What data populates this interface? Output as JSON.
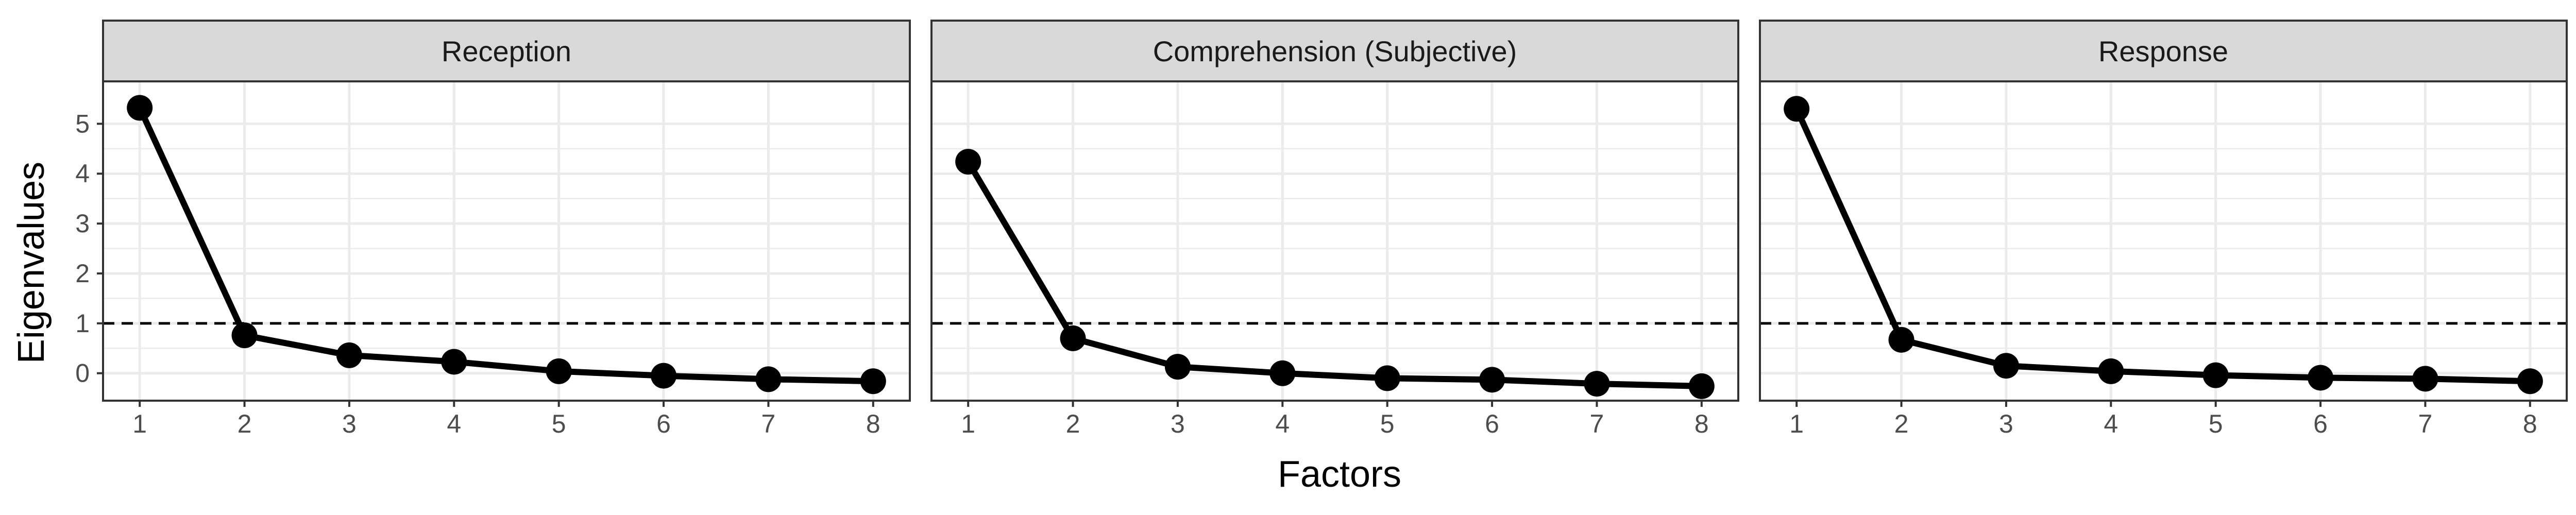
{
  "chart_data": {
    "type": "line",
    "xlabel": "Factors",
    "ylabel": "Eigenvalues",
    "x": [
      1,
      2,
      3,
      4,
      5,
      6,
      7,
      8
    ],
    "ylim": [
      -0.55,
      5.85
    ],
    "y_ticks": [
      0,
      1,
      2,
      3,
      4,
      5
    ],
    "reference_line": {
      "y": 1,
      "style": "dashed"
    },
    "grid": true,
    "legend": "none",
    "colors": {
      "line": "#000000",
      "strip": "#d9d9d9",
      "grid": "#ebebeb",
      "border": "#333333"
    },
    "panels": [
      {
        "title": "Reception",
        "values": [
          5.32,
          0.76,
          0.36,
          0.23,
          0.04,
          -0.05,
          -0.12,
          -0.16
        ]
      },
      {
        "title": "Comprehension (Subjective)",
        "values": [
          4.24,
          0.7,
          0.13,
          0.0,
          -0.1,
          -0.13,
          -0.21,
          -0.26
        ]
      },
      {
        "title": "Response",
        "values": [
          5.3,
          0.67,
          0.15,
          0.04,
          -0.04,
          -0.09,
          -0.11,
          -0.16
        ]
      }
    ]
  }
}
